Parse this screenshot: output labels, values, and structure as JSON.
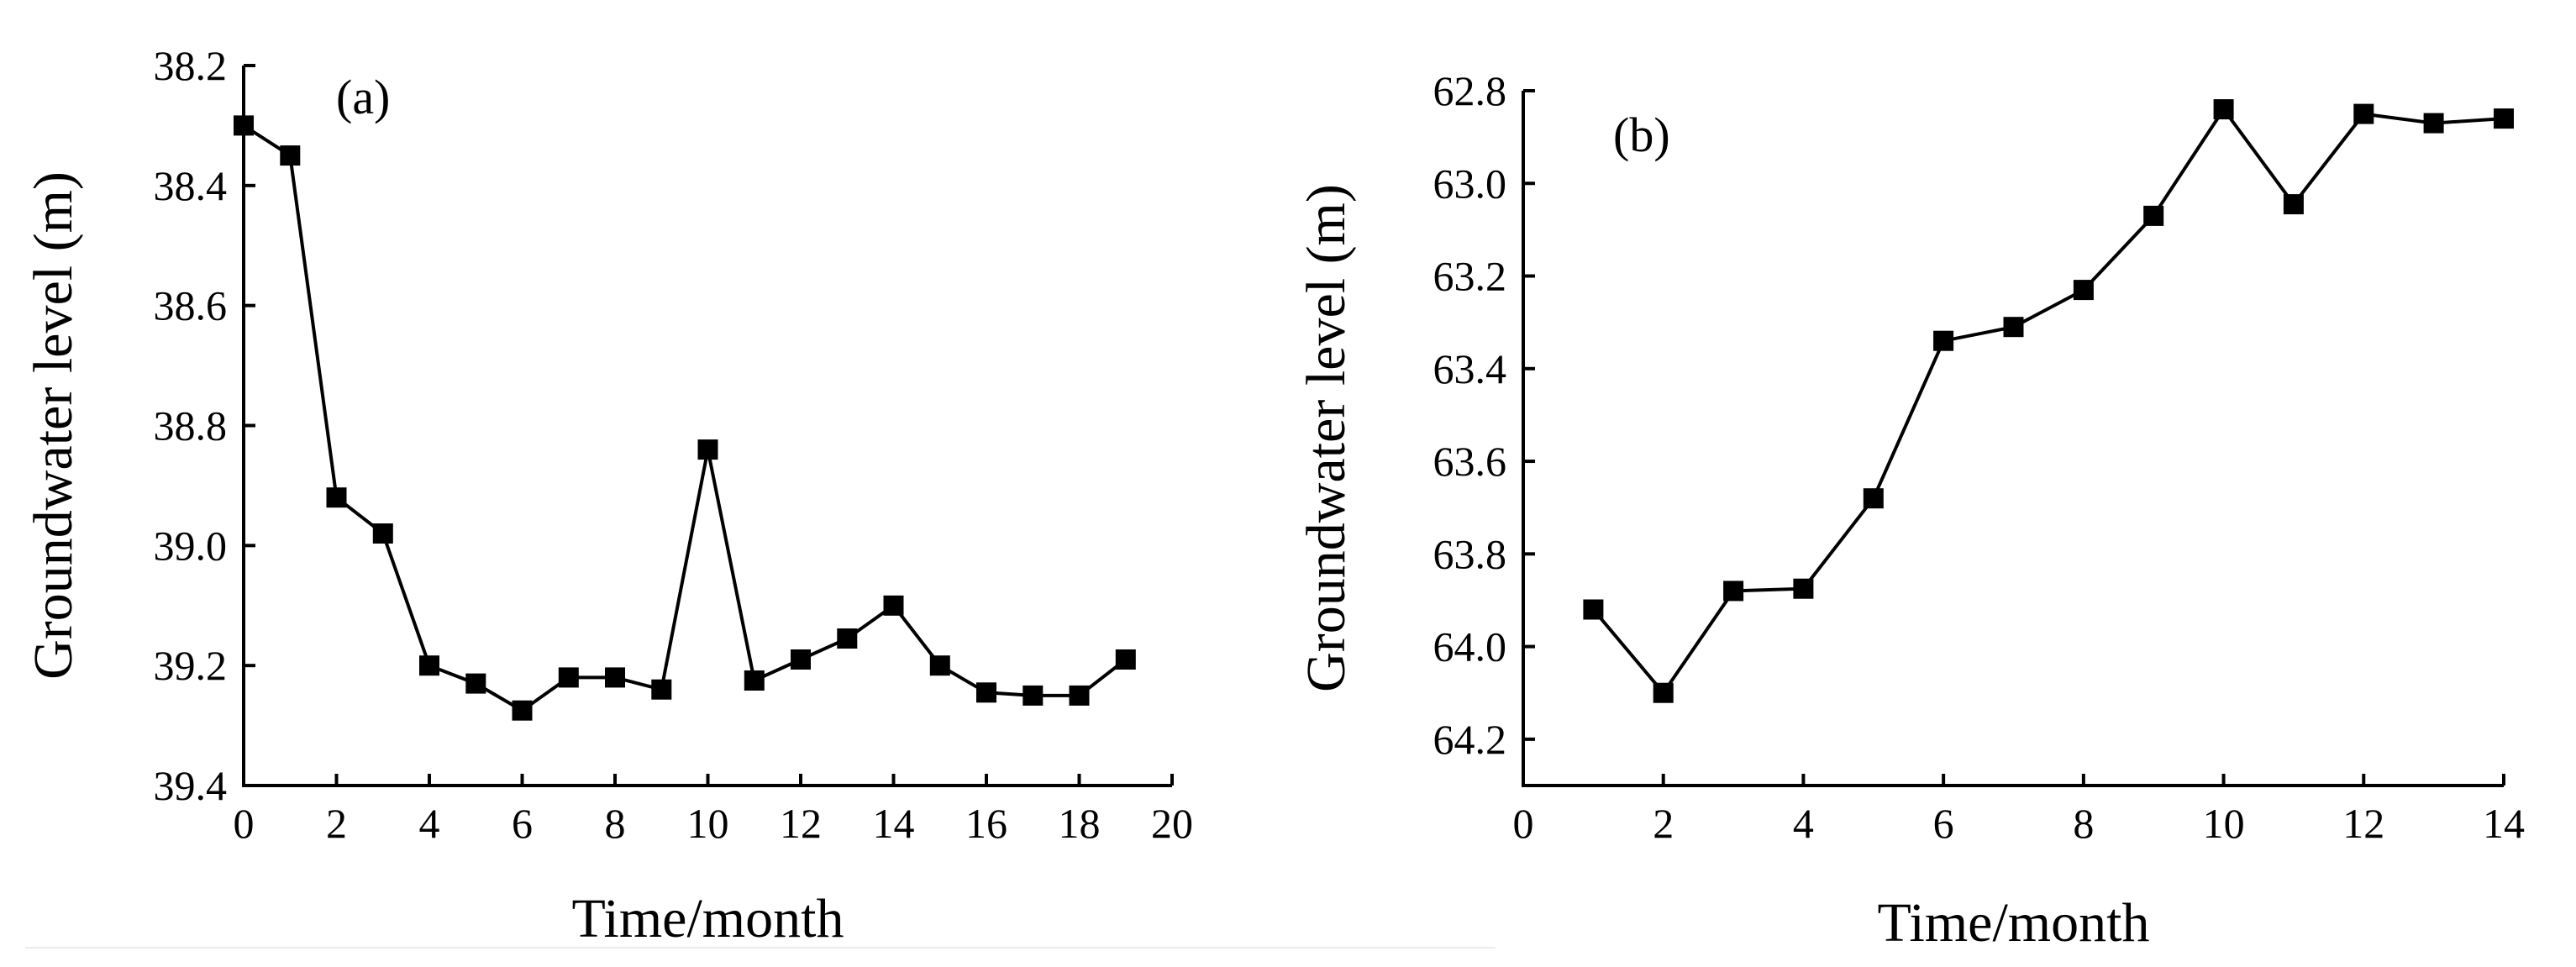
{
  "chart_data": [
    {
      "id": "a",
      "type": "line",
      "panel_label": "(a)",
      "title": "",
      "xlabel": "Time/month",
      "ylabel": "Groundwater level (m)",
      "xlim": [
        0,
        20
      ],
      "ylim": [
        38.2,
        39.4
      ],
      "y_inverted": true,
      "xticks": [
        0,
        2,
        4,
        6,
        8,
        10,
        12,
        14,
        16,
        18,
        20
      ],
      "yticks": [
        38.2,
        38.4,
        38.6,
        38.8,
        39.0,
        39.2,
        39.4
      ],
      "ytick_labels": [
        "38.2",
        "38.4",
        "38.6",
        "38.8",
        "39.0",
        "39.2",
        "39.4"
      ],
      "marker": "square",
      "grid": false,
      "series": [
        {
          "name": "Groundwater level",
          "x": [
            0,
            1,
            2,
            3,
            4,
            5,
            6,
            7,
            8,
            9,
            10,
            11,
            12,
            13,
            14,
            15,
            16,
            17,
            18,
            19
          ],
          "y": [
            38.3,
            38.35,
            38.92,
            38.98,
            39.2,
            39.23,
            39.275,
            39.22,
            39.22,
            39.24,
            38.84,
            39.225,
            39.19,
            39.155,
            39.1,
            39.2,
            39.245,
            39.25,
            39.25,
            39.19
          ]
        }
      ]
    },
    {
      "id": "b",
      "type": "line",
      "panel_label": "(b)",
      "title": "",
      "xlabel": "Time/month",
      "ylabel": "Groundwater level (m)",
      "xlim": [
        0,
        14
      ],
      "ylim": [
        62.8,
        64.3
      ],
      "y_inverted": true,
      "xticks": [
        0,
        2,
        4,
        6,
        8,
        10,
        12,
        14
      ],
      "yticks": [
        62.8,
        63.0,
        63.2,
        63.4,
        63.6,
        63.8,
        64.0,
        64.2
      ],
      "ytick_labels": [
        "62.8",
        "63.0",
        "63.2",
        "63.4",
        "63.6",
        "63.8",
        "64.0",
        "64.2"
      ],
      "marker": "square",
      "grid": false,
      "series": [
        {
          "name": "Groundwater level",
          "x": [
            1,
            2,
            3,
            4,
            5,
            6,
            7,
            8,
            9,
            10,
            11,
            12,
            13,
            14
          ],
          "y": [
            63.92,
            64.1,
            63.88,
            63.875,
            63.68,
            63.34,
            63.31,
            63.23,
            63.07,
            62.84,
            63.045,
            62.85,
            62.87,
            62.86
          ]
        }
      ]
    }
  ]
}
